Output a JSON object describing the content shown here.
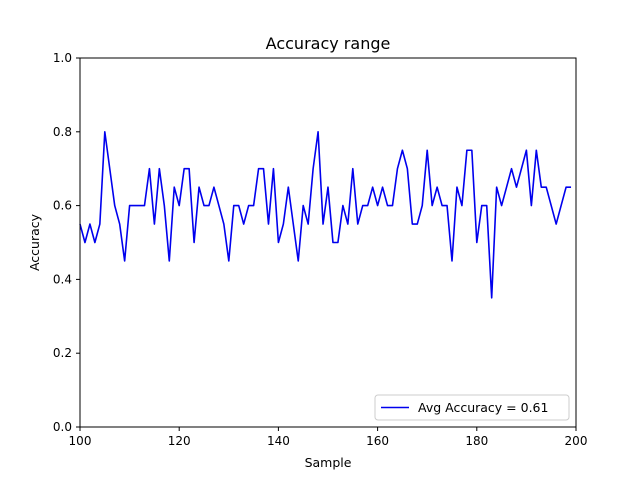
{
  "chart_data": {
    "type": "line",
    "title": "Accuracy range",
    "xlabel": "Sample",
    "ylabel": "Accuracy",
    "xlim": [
      100,
      200
    ],
    "ylim": [
      0,
      1
    ],
    "xticks": [
      "100",
      "120",
      "140",
      "160",
      "180",
      "200"
    ],
    "yticks": [
      "0.0",
      "0.2",
      "0.4",
      "0.6",
      "0.8",
      "1.0"
    ],
    "grid": false,
    "legend_position": "lower-right",
    "series": [
      {
        "name": "Avg Accuracy = 0.61",
        "color": "#0000ee",
        "x": [
          100,
          101,
          102,
          103,
          104,
          105,
          106,
          107,
          108,
          109,
          110,
          111,
          112,
          113,
          114,
          115,
          116,
          117,
          118,
          119,
          120,
          121,
          122,
          123,
          124,
          125,
          126,
          127,
          128,
          129,
          130,
          131,
          132,
          133,
          134,
          135,
          136,
          137,
          138,
          139,
          140,
          141,
          142,
          143,
          144,
          145,
          146,
          147,
          148,
          149,
          150,
          151,
          152,
          153,
          154,
          155,
          156,
          157,
          158,
          159,
          160,
          161,
          162,
          163,
          164,
          165,
          166,
          167,
          168,
          169,
          170,
          171,
          172,
          173,
          174,
          175,
          176,
          177,
          178,
          179,
          180,
          181,
          182,
          183,
          184,
          185,
          186,
          187,
          188,
          189,
          190,
          191,
          192,
          193,
          194,
          195,
          196,
          197,
          198,
          199
        ],
        "y": [
          0.55,
          0.5,
          0.55,
          0.5,
          0.55,
          0.8,
          0.7,
          0.6,
          0.55,
          0.45,
          0.6,
          0.6,
          0.6,
          0.6,
          0.7,
          0.55,
          0.7,
          0.6,
          0.45,
          0.65,
          0.6,
          0.7,
          0.7,
          0.5,
          0.65,
          0.6,
          0.6,
          0.65,
          0.6,
          0.55,
          0.45,
          0.6,
          0.6,
          0.55,
          0.6,
          0.6,
          0.7,
          0.7,
          0.55,
          0.7,
          0.5,
          0.55,
          0.65,
          0.55,
          0.45,
          0.6,
          0.55,
          0.7,
          0.8,
          0.55,
          0.65,
          0.5,
          0.5,
          0.6,
          0.55,
          0.7,
          0.55,
          0.6,
          0.6,
          0.65,
          0.6,
          0.65,
          0.6,
          0.6,
          0.7,
          0.75,
          0.7,
          0.55,
          0.55,
          0.6,
          0.75,
          0.6,
          0.65,
          0.6,
          0.6,
          0.45,
          0.65,
          0.6,
          0.75,
          0.75,
          0.5,
          0.6,
          0.6,
          0.35,
          0.65,
          0.6,
          0.65,
          0.7,
          0.65,
          0.7,
          0.75,
          0.6,
          0.75,
          0.65,
          0.65,
          0.6,
          0.55,
          0.6,
          0.65,
          0.65
        ]
      }
    ]
  }
}
